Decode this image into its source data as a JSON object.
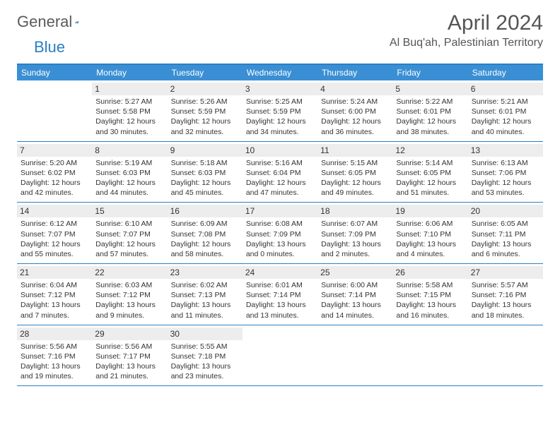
{
  "logo": {
    "general": "General",
    "blue": "Blue"
  },
  "title": "April 2024",
  "location": "Al Buq'ah, Palestinian Territory",
  "weekdays": [
    "Sunday",
    "Monday",
    "Tuesday",
    "Wednesday",
    "Thursday",
    "Friday",
    "Saturday"
  ],
  "colors": {
    "header_bg": "#3a8fd4",
    "rule": "#2b7fc4",
    "daybar": "#ededed",
    "text": "#333333",
    "logo_gray": "#5a5a5a",
    "logo_blue": "#2b7fc4"
  },
  "weeks": [
    [
      {
        "n": "",
        "sunrise": "",
        "sunset": "",
        "day1": "",
        "day2": ""
      },
      {
        "n": "1",
        "sunrise": "Sunrise: 5:27 AM",
        "sunset": "Sunset: 5:58 PM",
        "day1": "Daylight: 12 hours",
        "day2": "and 30 minutes."
      },
      {
        "n": "2",
        "sunrise": "Sunrise: 5:26 AM",
        "sunset": "Sunset: 5:59 PM",
        "day1": "Daylight: 12 hours",
        "day2": "and 32 minutes."
      },
      {
        "n": "3",
        "sunrise": "Sunrise: 5:25 AM",
        "sunset": "Sunset: 5:59 PM",
        "day1": "Daylight: 12 hours",
        "day2": "and 34 minutes."
      },
      {
        "n": "4",
        "sunrise": "Sunrise: 5:24 AM",
        "sunset": "Sunset: 6:00 PM",
        "day1": "Daylight: 12 hours",
        "day2": "and 36 minutes."
      },
      {
        "n": "5",
        "sunrise": "Sunrise: 5:22 AM",
        "sunset": "Sunset: 6:01 PM",
        "day1": "Daylight: 12 hours",
        "day2": "and 38 minutes."
      },
      {
        "n": "6",
        "sunrise": "Sunrise: 5:21 AM",
        "sunset": "Sunset: 6:01 PM",
        "day1": "Daylight: 12 hours",
        "day2": "and 40 minutes."
      }
    ],
    [
      {
        "n": "7",
        "sunrise": "Sunrise: 5:20 AM",
        "sunset": "Sunset: 6:02 PM",
        "day1": "Daylight: 12 hours",
        "day2": "and 42 minutes."
      },
      {
        "n": "8",
        "sunrise": "Sunrise: 5:19 AM",
        "sunset": "Sunset: 6:03 PM",
        "day1": "Daylight: 12 hours",
        "day2": "and 44 minutes."
      },
      {
        "n": "9",
        "sunrise": "Sunrise: 5:18 AM",
        "sunset": "Sunset: 6:03 PM",
        "day1": "Daylight: 12 hours",
        "day2": "and 45 minutes."
      },
      {
        "n": "10",
        "sunrise": "Sunrise: 5:16 AM",
        "sunset": "Sunset: 6:04 PM",
        "day1": "Daylight: 12 hours",
        "day2": "and 47 minutes."
      },
      {
        "n": "11",
        "sunrise": "Sunrise: 5:15 AM",
        "sunset": "Sunset: 6:05 PM",
        "day1": "Daylight: 12 hours",
        "day2": "and 49 minutes."
      },
      {
        "n": "12",
        "sunrise": "Sunrise: 5:14 AM",
        "sunset": "Sunset: 6:05 PM",
        "day1": "Daylight: 12 hours",
        "day2": "and 51 minutes."
      },
      {
        "n": "13",
        "sunrise": "Sunrise: 6:13 AM",
        "sunset": "Sunset: 7:06 PM",
        "day1": "Daylight: 12 hours",
        "day2": "and 53 minutes."
      }
    ],
    [
      {
        "n": "14",
        "sunrise": "Sunrise: 6:12 AM",
        "sunset": "Sunset: 7:07 PM",
        "day1": "Daylight: 12 hours",
        "day2": "and 55 minutes."
      },
      {
        "n": "15",
        "sunrise": "Sunrise: 6:10 AM",
        "sunset": "Sunset: 7:07 PM",
        "day1": "Daylight: 12 hours",
        "day2": "and 57 minutes."
      },
      {
        "n": "16",
        "sunrise": "Sunrise: 6:09 AM",
        "sunset": "Sunset: 7:08 PM",
        "day1": "Daylight: 12 hours",
        "day2": "and 58 minutes."
      },
      {
        "n": "17",
        "sunrise": "Sunrise: 6:08 AM",
        "sunset": "Sunset: 7:09 PM",
        "day1": "Daylight: 13 hours",
        "day2": "and 0 minutes."
      },
      {
        "n": "18",
        "sunrise": "Sunrise: 6:07 AM",
        "sunset": "Sunset: 7:09 PM",
        "day1": "Daylight: 13 hours",
        "day2": "and 2 minutes."
      },
      {
        "n": "19",
        "sunrise": "Sunrise: 6:06 AM",
        "sunset": "Sunset: 7:10 PM",
        "day1": "Daylight: 13 hours",
        "day2": "and 4 minutes."
      },
      {
        "n": "20",
        "sunrise": "Sunrise: 6:05 AM",
        "sunset": "Sunset: 7:11 PM",
        "day1": "Daylight: 13 hours",
        "day2": "and 6 minutes."
      }
    ],
    [
      {
        "n": "21",
        "sunrise": "Sunrise: 6:04 AM",
        "sunset": "Sunset: 7:12 PM",
        "day1": "Daylight: 13 hours",
        "day2": "and 7 minutes."
      },
      {
        "n": "22",
        "sunrise": "Sunrise: 6:03 AM",
        "sunset": "Sunset: 7:12 PM",
        "day1": "Daylight: 13 hours",
        "day2": "and 9 minutes."
      },
      {
        "n": "23",
        "sunrise": "Sunrise: 6:02 AM",
        "sunset": "Sunset: 7:13 PM",
        "day1": "Daylight: 13 hours",
        "day2": "and 11 minutes."
      },
      {
        "n": "24",
        "sunrise": "Sunrise: 6:01 AM",
        "sunset": "Sunset: 7:14 PM",
        "day1": "Daylight: 13 hours",
        "day2": "and 13 minutes."
      },
      {
        "n": "25",
        "sunrise": "Sunrise: 6:00 AM",
        "sunset": "Sunset: 7:14 PM",
        "day1": "Daylight: 13 hours",
        "day2": "and 14 minutes."
      },
      {
        "n": "26",
        "sunrise": "Sunrise: 5:58 AM",
        "sunset": "Sunset: 7:15 PM",
        "day1": "Daylight: 13 hours",
        "day2": "and 16 minutes."
      },
      {
        "n": "27",
        "sunrise": "Sunrise: 5:57 AM",
        "sunset": "Sunset: 7:16 PM",
        "day1": "Daylight: 13 hours",
        "day2": "and 18 minutes."
      }
    ],
    [
      {
        "n": "28",
        "sunrise": "Sunrise: 5:56 AM",
        "sunset": "Sunset: 7:16 PM",
        "day1": "Daylight: 13 hours",
        "day2": "and 19 minutes."
      },
      {
        "n": "29",
        "sunrise": "Sunrise: 5:56 AM",
        "sunset": "Sunset: 7:17 PM",
        "day1": "Daylight: 13 hours",
        "day2": "and 21 minutes."
      },
      {
        "n": "30",
        "sunrise": "Sunrise: 5:55 AM",
        "sunset": "Sunset: 7:18 PM",
        "day1": "Daylight: 13 hours",
        "day2": "and 23 minutes."
      },
      {
        "n": "",
        "sunrise": "",
        "sunset": "",
        "day1": "",
        "day2": ""
      },
      {
        "n": "",
        "sunrise": "",
        "sunset": "",
        "day1": "",
        "day2": ""
      },
      {
        "n": "",
        "sunrise": "",
        "sunset": "",
        "day1": "",
        "day2": ""
      },
      {
        "n": "",
        "sunrise": "",
        "sunset": "",
        "day1": "",
        "day2": ""
      }
    ]
  ]
}
